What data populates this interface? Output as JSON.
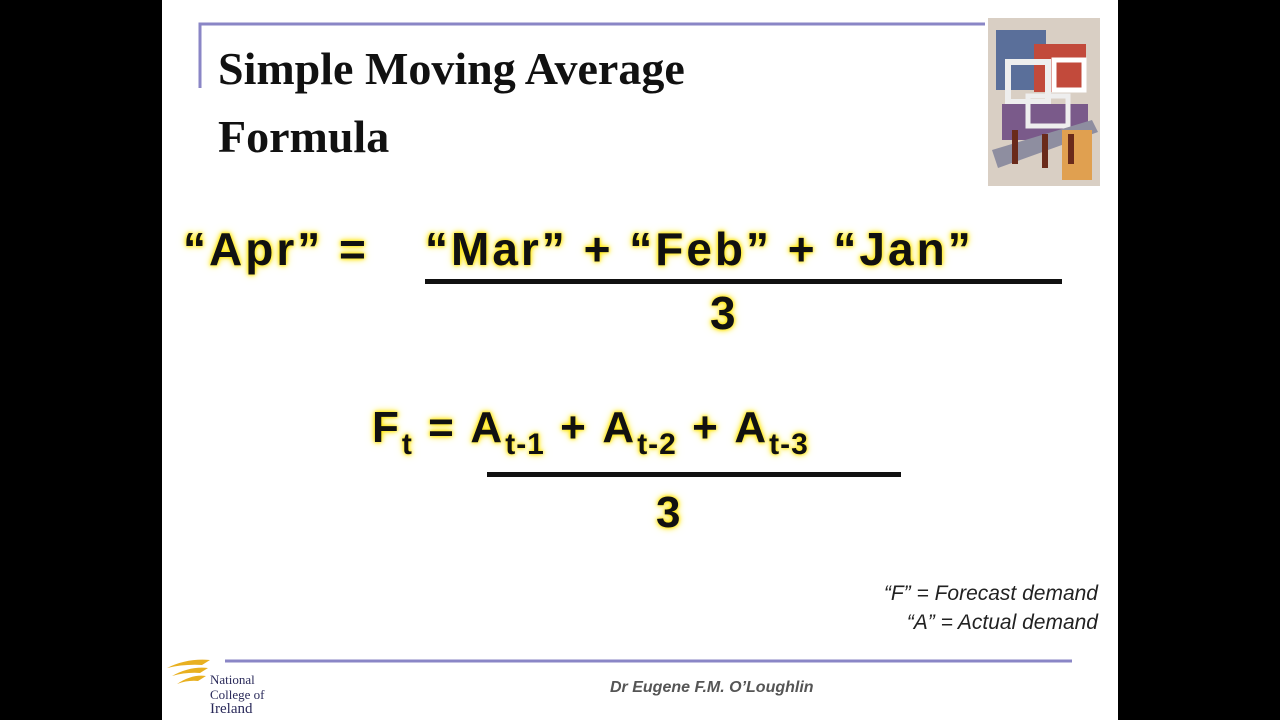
{
  "header": {
    "title_line1": "Simple Moving Average",
    "title_line2": "Formula"
  },
  "formula1": {
    "lhs": "“Apr”",
    "equals": "=",
    "numerator": "“Mar” + “Feb” + “Jan”",
    "denominator": "3"
  },
  "formula2": {
    "lhs": {
      "base": "F",
      "sub": "t"
    },
    "equals": "=",
    "numerator": [
      {
        "base": "A",
        "sub": "t-1"
      },
      {
        "op": "+"
      },
      {
        "base": "A",
        "sub": "t-2"
      },
      {
        "op": "+"
      },
      {
        "base": "A",
        "sub": "t-3"
      }
    ],
    "denominator": "3"
  },
  "notes": [
    "“F” = Forecast demand",
    "“A” = Actual demand"
  ],
  "footer": {
    "author": "Dr Eugene F.M. O’Loughlin",
    "logo": [
      "National",
      "College of",
      "Ireland"
    ]
  }
}
